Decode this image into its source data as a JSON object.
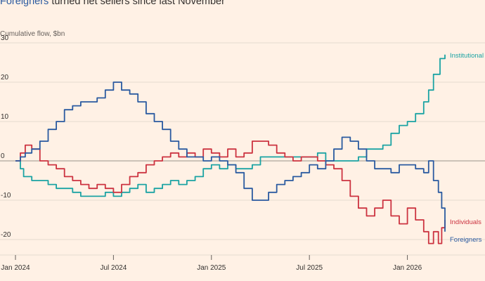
{
  "header": {
    "title_highlight": "Foreigners",
    "title_rest": " turned net sellers since last November",
    "subtitle": "Cumulative flow, $bn"
  },
  "chart_data": {
    "type": "line",
    "title": "Foreigners turned net sellers since last November",
    "ylabel": "Cumulative flow, $bn",
    "xlabel": "",
    "ylim": [
      -24,
      32
    ],
    "yticks": [
      30,
      20,
      10,
      0,
      -10,
      -20
    ],
    "xrange": [
      "Jan 2024",
      "Mar 2026"
    ],
    "xtick_labels": [
      "Jan 2024",
      "Jul 2024",
      "Jan 2025",
      "Jul 2025",
      "Jan 2026"
    ],
    "xtick_months": [
      0,
      6,
      12,
      18,
      24
    ],
    "month_span": [
      0,
      26.3
    ],
    "series": [
      {
        "name": "Institutional",
        "color": "#1aa3a3",
        "x": [
          0,
          0.3,
          0.5,
          1,
          1.5,
          2,
          2.5,
          3,
          3.5,
          4,
          4.5,
          5,
          5.5,
          6,
          6.5,
          7,
          7.5,
          8,
          8.5,
          9,
          9.5,
          10,
          10.5,
          11,
          11.5,
          12,
          12.5,
          13,
          13.5,
          14,
          14.5,
          15,
          15.5,
          16,
          16.5,
          17,
          17.5,
          18,
          18.5,
          19,
          19.5,
          20,
          20.5,
          21,
          21.5,
          22,
          22.5,
          23,
          23.5,
          24,
          24.5,
          25,
          25.3,
          25.6,
          26,
          26.3
        ],
        "values": [
          0,
          -2,
          -4,
          -5,
          -5,
          -6,
          -7,
          -7,
          -8,
          -9,
          -9,
          -9,
          -8,
          -9,
          -8,
          -7,
          -6,
          -8,
          -7,
          -6,
          -5,
          -6,
          -5,
          -4,
          -2,
          -1,
          -2,
          -1,
          -2,
          -2,
          -1,
          1,
          1,
          1,
          1,
          1,
          1,
          1,
          2,
          0,
          0,
          0,
          0,
          1,
          3,
          3,
          4,
          7,
          9,
          10,
          12,
          15,
          18,
          22,
          26,
          27
        ]
      },
      {
        "name": "Individuals",
        "color": "#cc3340",
        "x": [
          0,
          0.3,
          0.6,
          1,
          1.5,
          2,
          2.5,
          3,
          3.5,
          4,
          4.5,
          5,
          5.5,
          6,
          6.5,
          7,
          7.5,
          8,
          8.5,
          9,
          9.5,
          10,
          10.5,
          11,
          11.5,
          12,
          12.5,
          13,
          13.5,
          14,
          14.5,
          15,
          15.5,
          16,
          16.5,
          17,
          17.5,
          18,
          18.5,
          19,
          19.5,
          20,
          20.5,
          21,
          21.5,
          22,
          22.5,
          23,
          23.5,
          24,
          24.5,
          25,
          25.3,
          25.6,
          25.9,
          26.1,
          26.3
        ],
        "values": [
          0,
          2,
          4,
          3,
          0,
          -1,
          -2,
          -4,
          -5,
          -6,
          -7,
          -6,
          -7,
          -8,
          -6,
          -4,
          -3,
          -1,
          0,
          1,
          2,
          1,
          2,
          1,
          3,
          2,
          1,
          3,
          1,
          2,
          5,
          5,
          4,
          2,
          1,
          0,
          1,
          1,
          0,
          -1,
          -2,
          -5,
          -9,
          -12,
          -14,
          -12,
          -10,
          -14,
          -16,
          -12,
          -15,
          -18,
          -21,
          -18,
          -21,
          -17,
          -15
        ]
      },
      {
        "name": "Foreigners",
        "color": "#2a5aa0",
        "x": [
          0,
          0.3,
          0.6,
          1,
          1.5,
          2,
          2.5,
          3,
          3.5,
          4,
          4.5,
          5,
          5.5,
          6,
          6.5,
          7,
          7.5,
          8,
          8.5,
          9,
          9.5,
          10,
          10.5,
          11,
          11.5,
          12,
          12.5,
          13,
          13.5,
          14,
          14.5,
          15,
          15.5,
          16,
          16.5,
          17,
          17.5,
          18,
          18.5,
          19,
          19.5,
          20,
          20.5,
          21,
          21.5,
          22,
          22.5,
          23,
          23.5,
          24,
          24.5,
          25,
          25.3,
          25.6,
          25.9,
          26.1,
          26.3
        ],
        "values": [
          0,
          1,
          2,
          3,
          5,
          8,
          10,
          13,
          14,
          15,
          15,
          16,
          18,
          20,
          18,
          17,
          15,
          12,
          10,
          8,
          5,
          3,
          1,
          1,
          0,
          1,
          0,
          -1,
          -3,
          -7,
          -10,
          -10,
          -8,
          -6,
          -5,
          -4,
          -3,
          -1,
          -2,
          0,
          3,
          6,
          5,
          3,
          0,
          -2,
          -2,
          -3,
          -1,
          -1,
          -2,
          -3,
          0,
          -5,
          -8,
          -12,
          -18
        ]
      }
    ],
    "annotations": [
      {
        "text": "Institutional",
        "series": "Institutional"
      },
      {
        "text": "Individuals",
        "series": "Individuals"
      },
      {
        "text": "Foreigners",
        "series": "Foreigners"
      }
    ]
  }
}
